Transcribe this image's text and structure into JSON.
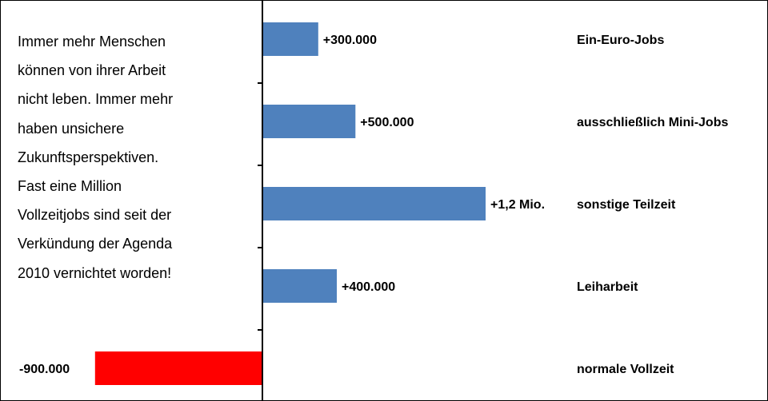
{
  "annotation": {
    "lines": [
      "Immer mehr Menschen",
      "können von ihrer Arbeit",
      "nicht leben. Immer mehr",
      "haben unsichere",
      "Zukunftsperspektiven.",
      "Fast eine Million",
      "Vollzeitjobs sind seit der",
      "Verkündung der Agenda",
      "2010 vernichtet worden!"
    ]
  },
  "chart_data": {
    "type": "bar",
    "orientation": "horizontal",
    "title": "",
    "xlabel": "",
    "ylabel": "",
    "categories": [
      "Ein-Euro-Jobs",
      "ausschließlich Mini-Jobs",
      "sonstige Teilzeit",
      "Leiharbeit",
      "normale Vollzeit"
    ],
    "values": [
      300000,
      500000,
      1200000,
      400000,
      -900000
    ],
    "data_labels": [
      "+300.000",
      "+500.000",
      "+1,2 Mio.",
      "+400.000",
      "-900.000"
    ],
    "colors": {
      "positive": "#4f81bd",
      "negative": "#ff0000"
    },
    "xlim": [
      -900000,
      1200000
    ],
    "grid": false,
    "legend": "none"
  }
}
